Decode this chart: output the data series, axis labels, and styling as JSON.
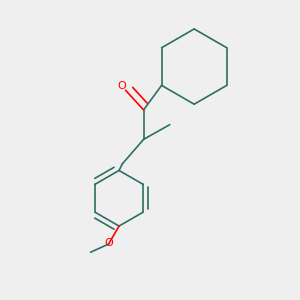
{
  "bg_color": "#efefef",
  "bond_color": "#2d6e63",
  "oxygen_color": "#ff0000",
  "bond_width": 1.2,
  "figsize": [
    3.0,
    3.0
  ],
  "dpi": 100,
  "xlim": [
    0.05,
    0.95
  ],
  "ylim": [
    0.05,
    0.95
  ]
}
